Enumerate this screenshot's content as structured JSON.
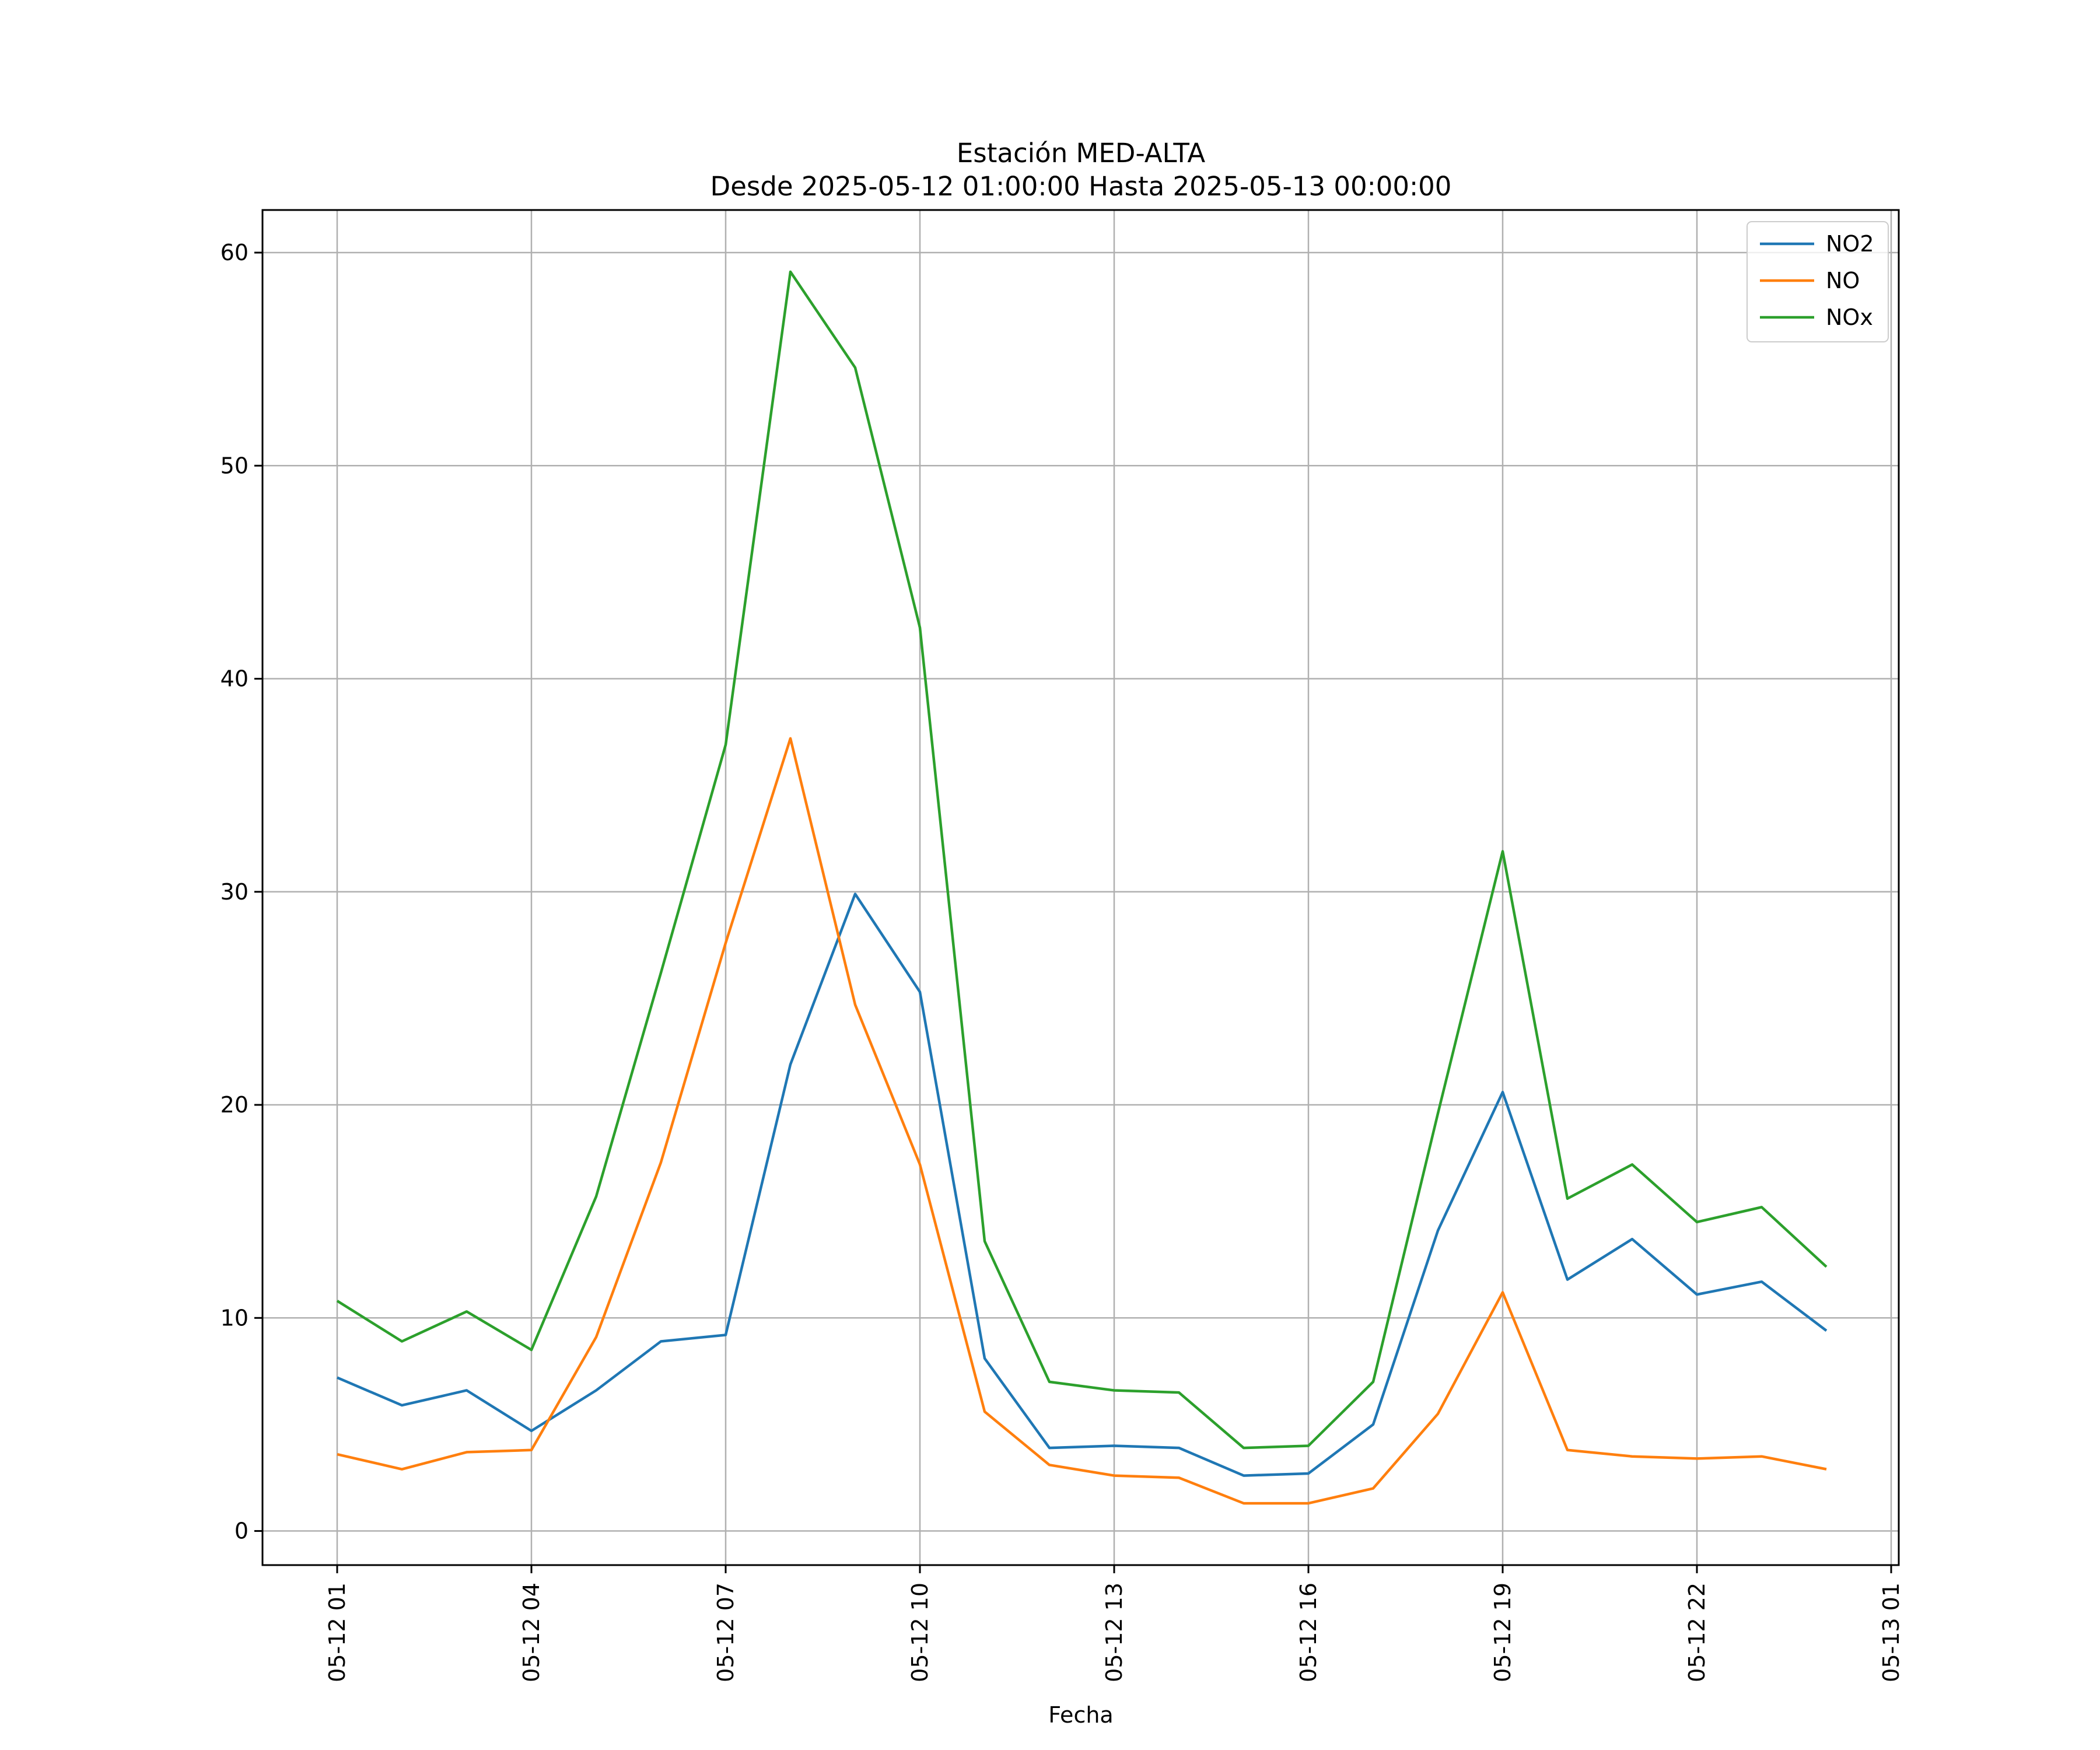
{
  "chart_data": {
    "type": "line",
    "title": "Estación MED-ALTA",
    "subtitle": "Desde 2025-05-12 01:00:00 Hasta 2025-05-13 00:00:00",
    "xlabel": "Fecha",
    "ylabel": "",
    "x": [
      "05-12 01",
      "05-12 02",
      "05-12 03",
      "05-12 04",
      "05-12 05",
      "05-12 06",
      "05-12 07",
      "05-12 08",
      "05-12 09",
      "05-12 10",
      "05-12 11",
      "05-12 12",
      "05-12 13",
      "05-12 14",
      "05-12 15",
      "05-12 16",
      "05-12 17",
      "05-12 18",
      "05-12 19",
      "05-12 20",
      "05-12 21",
      "05-12 22",
      "05-12 23",
      "05-13 00"
    ],
    "x_ticks": [
      "05-12 01",
      "05-12 04",
      "05-12 07",
      "05-12 10",
      "05-12 13",
      "05-12 16",
      "05-12 19",
      "05-12 22",
      "05-13 01"
    ],
    "y_ticks": [
      0,
      10,
      20,
      30,
      40,
      50,
      60
    ],
    "ylim": [
      -1.6,
      62
    ],
    "grid": true,
    "legend_position": "top-right",
    "series": [
      {
        "name": "NO2",
        "color": "#1f77b4",
        "values": [
          7.2,
          5.9,
          6.6,
          4.7,
          6.6,
          8.9,
          9.2,
          21.9,
          29.9,
          25.3,
          8.1,
          3.9,
          4.0,
          3.9,
          2.6,
          2.7,
          5.0,
          14.1,
          20.6,
          11.8,
          13.7,
          11.1,
          11.7,
          9.4
        ]
      },
      {
        "name": "NO",
        "color": "#ff7f0e",
        "values": [
          3.6,
          2.9,
          3.7,
          3.8,
          9.1,
          17.3,
          27.6,
          37.2,
          24.7,
          17.2,
          5.6,
          3.1,
          2.6,
          2.5,
          1.3,
          1.3,
          2.0,
          5.5,
          11.2,
          3.8,
          3.5,
          3.4,
          3.5,
          2.9
        ]
      },
      {
        "name": "NOx",
        "color": "#2ca02c",
        "values": [
          10.8,
          8.9,
          10.3,
          8.5,
          15.7,
          26.2,
          36.9,
          59.1,
          54.6,
          42.4,
          13.6,
          7.0,
          6.6,
          6.5,
          3.9,
          4.0,
          7.0,
          19.6,
          31.9,
          15.6,
          17.2,
          14.5,
          15.2,
          12.4
        ]
      }
    ]
  }
}
